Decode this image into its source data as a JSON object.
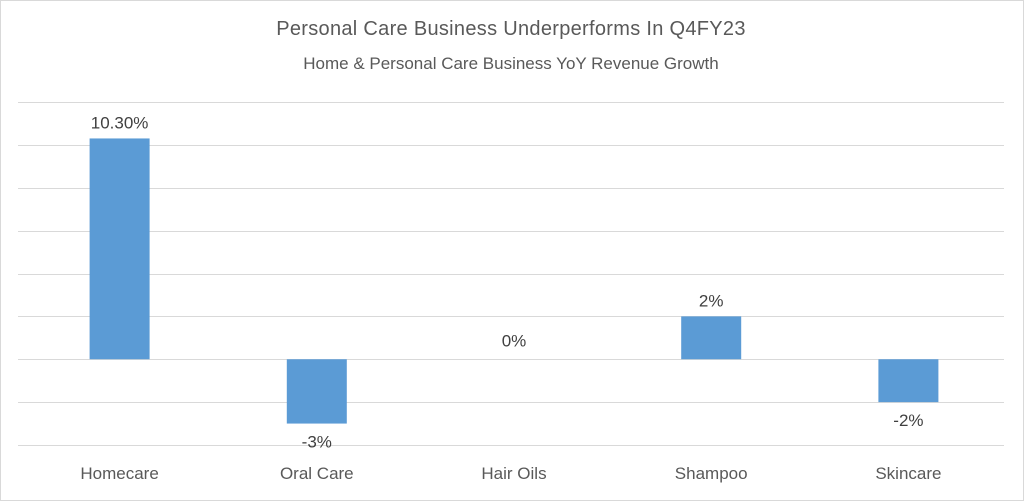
{
  "chart_data": {
    "type": "bar",
    "title": "Personal Care Business Underperforms In Q4FY23",
    "subtitle": "Home & Personal Care Business YoY Revenue Growth",
    "categories": [
      "Homecare",
      "Oral Care",
      "Hair Oils",
      "Shampoo",
      "Skincare"
    ],
    "values": [
      10.3,
      -3,
      0,
      2,
      -2
    ],
    "data_labels": [
      "10.30%",
      "-3%",
      "0%",
      "2%",
      "-2%"
    ],
    "ylim": [
      -4,
      12
    ],
    "grid_step": 2,
    "grid": true,
    "bar_color": "#5b9bd5",
    "gridline_color": "#d9d9d9"
  }
}
